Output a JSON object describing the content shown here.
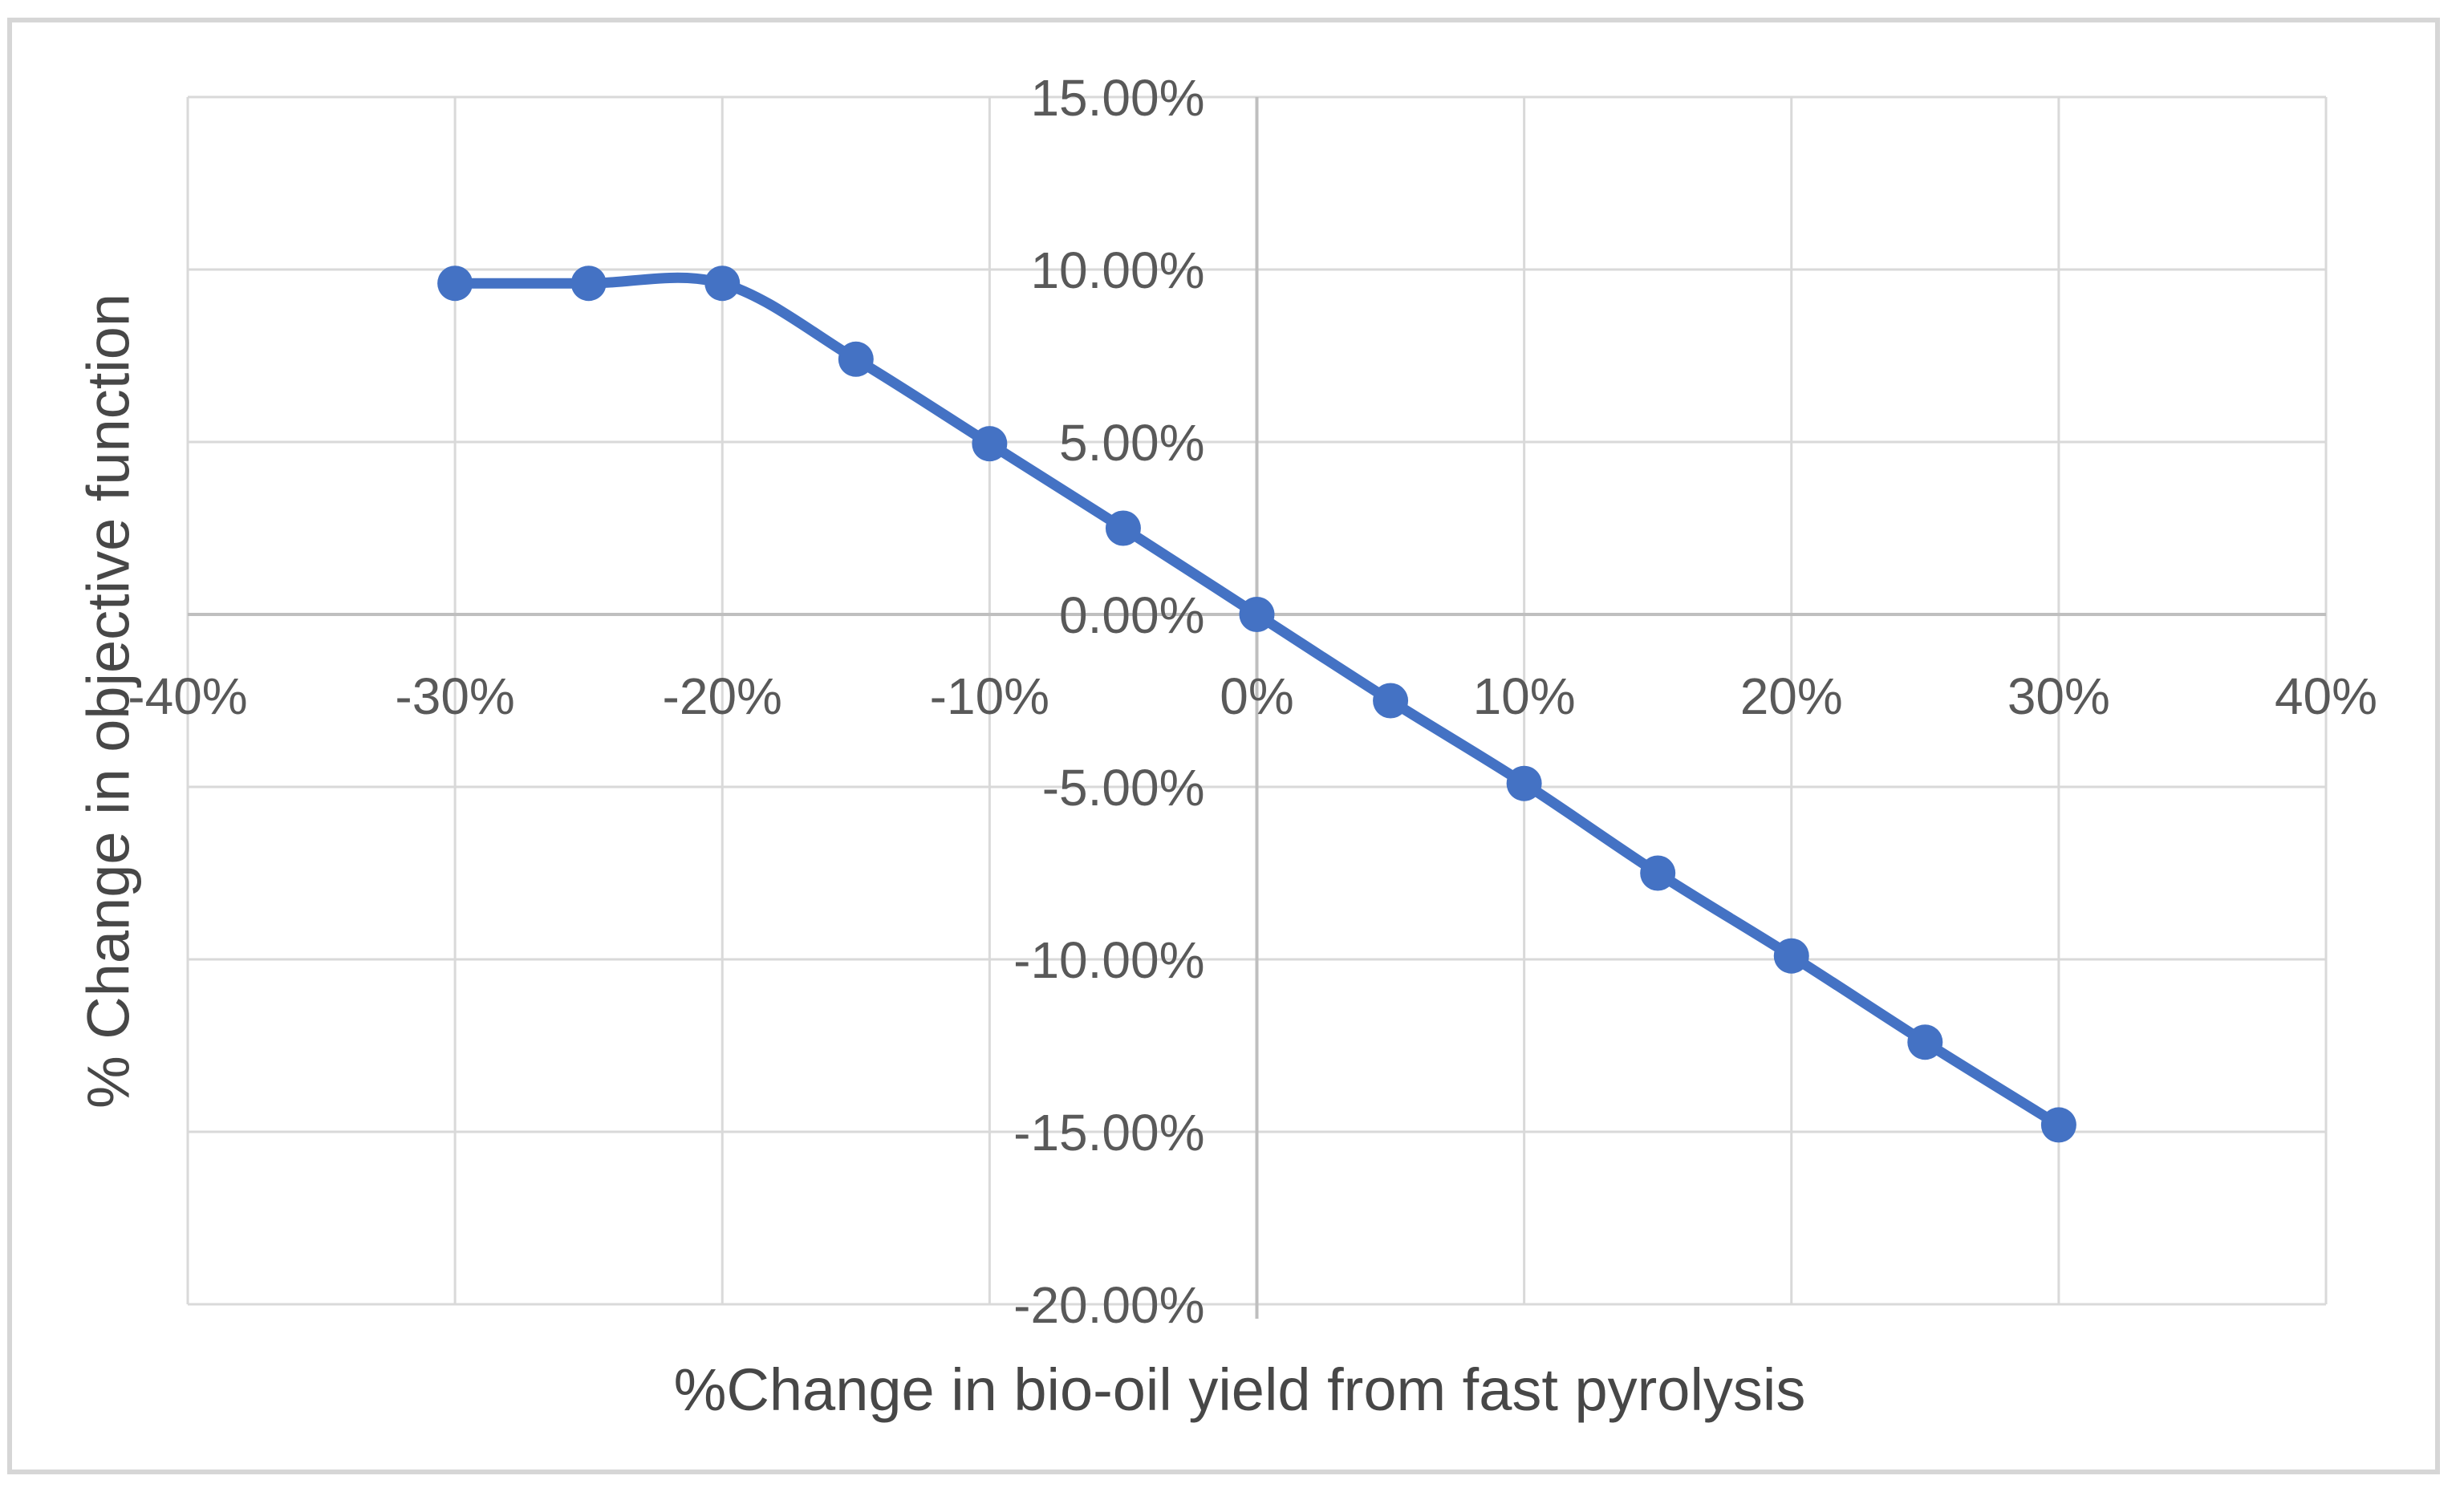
{
  "chart_data": {
    "type": "line",
    "title": "",
    "xlabel": "%Change in bio-oil yield from fast pyrolysis",
    "ylabel": "% Change in objective function",
    "x": [
      -30,
      -25,
      -20,
      -15,
      -10,
      -5,
      0,
      5,
      10,
      15,
      20,
      25,
      30
    ],
    "y": [
      9.6,
      9.6,
      9.6,
      7.4,
      4.95,
      2.5,
      0,
      -2.5,
      -4.9,
      -7.5,
      -9.9,
      -12.4,
      -14.8
    ],
    "xlim": [
      -40,
      40
    ],
    "ylim": [
      -20,
      15
    ],
    "x_tick_values": [
      -40,
      -30,
      -20,
      -10,
      0,
      10,
      20,
      30,
      40
    ],
    "x_tick_labels": [
      "-40%",
      "-30%",
      "-20%",
      "-10%",
      "0%",
      "10%",
      "20%",
      "30%",
      "40%"
    ],
    "y_tick_values": [
      15,
      10,
      5,
      0,
      -5,
      -10,
      -15,
      -20
    ],
    "y_tick_labels": [
      "15.00%",
      "10.00%",
      "5.00%",
      "0.00%",
      "-5.00%",
      "-10.00%",
      "-15.00%",
      "-20.00%"
    ],
    "smoothed": true,
    "grid": true,
    "legend": "none",
    "line_color": "#4472C4",
    "marker_color": "#4472C4",
    "gridline_color": "#D9D9D9",
    "axis_line_color": "#BFBFBF",
    "tick_label_color": "#595959",
    "axis_title_color": "#474747",
    "frame_color": "#D6D6D6",
    "background_color": "#FFFFFF"
  }
}
